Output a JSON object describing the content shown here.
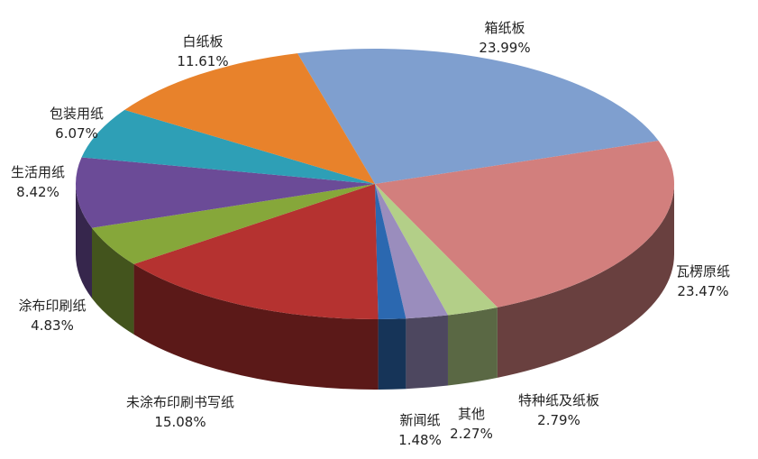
{
  "chart_data": {
    "type": "pie",
    "style": "3d",
    "legend": "none",
    "slices": [
      {
        "label": "箱纸板",
        "value": 23.99,
        "value_label": "23.99%",
        "color": "#7f9fcf"
      },
      {
        "label": "瓦楞原纸",
        "value": 23.47,
        "value_label": "23.47%",
        "color": "#d27f7d"
      },
      {
        "label": "特种纸及纸板",
        "value": 2.79,
        "value_label": "2.79%",
        "color": "#b3cf88"
      },
      {
        "label": "其他",
        "value": 2.27,
        "value_label": "2.27%",
        "color": "#9a8dbd"
      },
      {
        "label": "新闻纸",
        "value": 1.48,
        "value_label": "1.48%",
        "color": "#2b68b0"
      },
      {
        "label": "未涂布印刷书写纸",
        "value": 15.08,
        "value_label": "15.08%",
        "color": "#b53230"
      },
      {
        "label": "涂布印刷纸",
        "value": 4.83,
        "value_label": "4.83%",
        "color": "#86a73a"
      },
      {
        "label": "生活用纸",
        "value": 8.42,
        "value_label": "8.42%",
        "color": "#6b4b97"
      },
      {
        "label": "包装用纸",
        "value": 6.07,
        "value_label": "6.07%",
        "color": "#2e9fb6"
      },
      {
        "label": "白纸板",
        "value": 11.61,
        "value_label": "11.61%",
        "color": "#e8822b"
      }
    ]
  }
}
